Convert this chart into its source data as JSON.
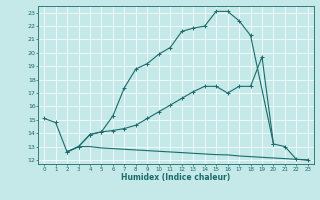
{
  "bg_color": "#c5e8e8",
  "line_color": "#1a6b6b",
  "xlim_min": -0.5,
  "xlim_max": 23.5,
  "ylim_min": 11.7,
  "ylim_max": 23.5,
  "yticks": [
    12,
    13,
    14,
    15,
    16,
    17,
    18,
    19,
    20,
    21,
    22,
    23
  ],
  "xticks": [
    0,
    1,
    2,
    3,
    4,
    5,
    6,
    7,
    8,
    9,
    10,
    11,
    12,
    13,
    14,
    15,
    16,
    17,
    18,
    19,
    20,
    21,
    22,
    23
  ],
  "xlabel": "Humidex (Indice chaleur)",
  "curve1_x": [
    0,
    1,
    2,
    3,
    4,
    5,
    6,
    7,
    8,
    9,
    10,
    11,
    12,
    13,
    14,
    15,
    16,
    17,
    18,
    20
  ],
  "curve1_y": [
    15.1,
    14.8,
    12.6,
    13.0,
    13.9,
    14.1,
    15.3,
    17.4,
    18.8,
    19.2,
    19.9,
    20.4,
    21.6,
    21.85,
    22.0,
    23.1,
    23.1,
    22.4,
    21.3,
    13.2
  ],
  "curve2_x": [
    2,
    3,
    4,
    5,
    6,
    7,
    8,
    9,
    10,
    11,
    12,
    13,
    14,
    15,
    16,
    17,
    18,
    19,
    20,
    21,
    22,
    23
  ],
  "curve2_y": [
    12.6,
    13.0,
    13.9,
    14.1,
    14.2,
    14.35,
    14.6,
    15.1,
    15.6,
    16.1,
    16.6,
    17.1,
    17.5,
    17.5,
    17.0,
    17.5,
    17.5,
    19.7,
    13.2,
    13.0,
    12.05,
    12.0
  ],
  "curve3_x": [
    2,
    3,
    4,
    5,
    6,
    7,
    8,
    9,
    10,
    11,
    12,
    13,
    14,
    15,
    16,
    17,
    18,
    19,
    20,
    21,
    22,
    23
  ],
  "curve3_y": [
    12.6,
    13.0,
    13.0,
    12.9,
    12.85,
    12.8,
    12.75,
    12.7,
    12.65,
    12.6,
    12.55,
    12.5,
    12.45,
    12.4,
    12.38,
    12.3,
    12.25,
    12.2,
    12.15,
    12.1,
    12.05,
    12.0
  ]
}
